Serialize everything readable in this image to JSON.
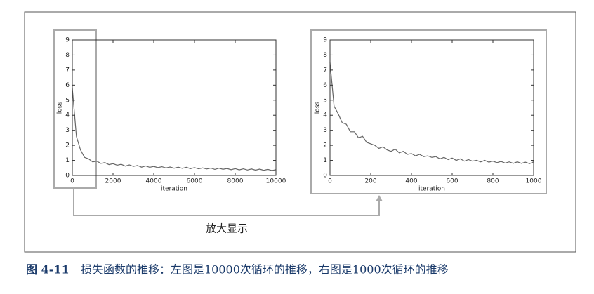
{
  "chart_data": [
    {
      "type": "line",
      "xlabel": "iteration",
      "ylabel": "loss",
      "color": "#666666",
      "x": [
        0,
        200,
        400,
        600,
        800,
        1000,
        1200,
        1400,
        1600,
        1800,
        2000,
        2200,
        2400,
        2600,
        2800,
        3000,
        3200,
        3400,
        3600,
        3800,
        4000,
        4200,
        4400,
        4600,
        4800,
        5000,
        5200,
        5400,
        5600,
        5800,
        6000,
        6200,
        6400,
        6600,
        6800,
        7000,
        7200,
        7400,
        7600,
        7800,
        8000,
        8200,
        8400,
        8600,
        8800,
        9000,
        9200,
        9400,
        9600,
        9800,
        10000
      ],
      "values": [
        5.8,
        2.6,
        1.7,
        1.2,
        1.1,
        0.9,
        0.95,
        0.8,
        0.85,
        0.72,
        0.78,
        0.68,
        0.74,
        0.62,
        0.7,
        0.6,
        0.66,
        0.55,
        0.63,
        0.54,
        0.6,
        0.52,
        0.58,
        0.5,
        0.56,
        0.48,
        0.55,
        0.47,
        0.54,
        0.45,
        0.52,
        0.44,
        0.5,
        0.43,
        0.49,
        0.4,
        0.48,
        0.41,
        0.46,
        0.38,
        0.45,
        0.37,
        0.44,
        0.36,
        0.43,
        0.35,
        0.42,
        0.34,
        0.4,
        0.33,
        0.38
      ],
      "xlim": [
        0,
        10000
      ],
      "xticks": [
        0,
        2000,
        4000,
        6000,
        8000,
        10000
      ],
      "ylim": [
        0,
        9
      ],
      "yticks": [
        0,
        1,
        2,
        3,
        4,
        5,
        6,
        7,
        8,
        9
      ]
    },
    {
      "type": "line",
      "xlabel": "iteration",
      "ylabel": "loss",
      "color": "#666666",
      "x": [
        0,
        20,
        40,
        60,
        80,
        100,
        120,
        140,
        160,
        180,
        200,
        220,
        240,
        260,
        280,
        300,
        320,
        340,
        360,
        380,
        400,
        420,
        440,
        460,
        480,
        500,
        520,
        540,
        560,
        580,
        600,
        620,
        640,
        660,
        680,
        700,
        720,
        740,
        760,
        780,
        800,
        820,
        840,
        860,
        880,
        900,
        920,
        940,
        960,
        980,
        1000
      ],
      "values": [
        7.5,
        4.6,
        4.1,
        3.5,
        3.4,
        2.9,
        2.9,
        2.5,
        2.6,
        2.2,
        2.1,
        2.0,
        1.8,
        1.9,
        1.7,
        1.6,
        1.75,
        1.5,
        1.6,
        1.4,
        1.45,
        1.3,
        1.4,
        1.25,
        1.3,
        1.2,
        1.25,
        1.1,
        1.2,
        1.05,
        1.15,
        1.0,
        1.1,
        0.95,
        1.05,
        0.95,
        1.0,
        0.9,
        1.0,
        0.88,
        0.95,
        0.85,
        0.93,
        0.82,
        0.9,
        0.8,
        0.9,
        0.8,
        0.88,
        0.78,
        0.9
      ],
      "xlim": [
        0,
        1000
      ],
      "xticks": [
        0,
        200,
        400,
        600,
        800,
        1000
      ],
      "ylim": [
        0,
        9
      ],
      "yticks": [
        0,
        1,
        2,
        3,
        4,
        5,
        6,
        7,
        8,
        9
      ]
    }
  ],
  "annotation": "放大显示",
  "figure_label": "图 4-11",
  "caption": "损失函数的推移：左图是10000次循环的推移，右图是1000次循环的推移"
}
